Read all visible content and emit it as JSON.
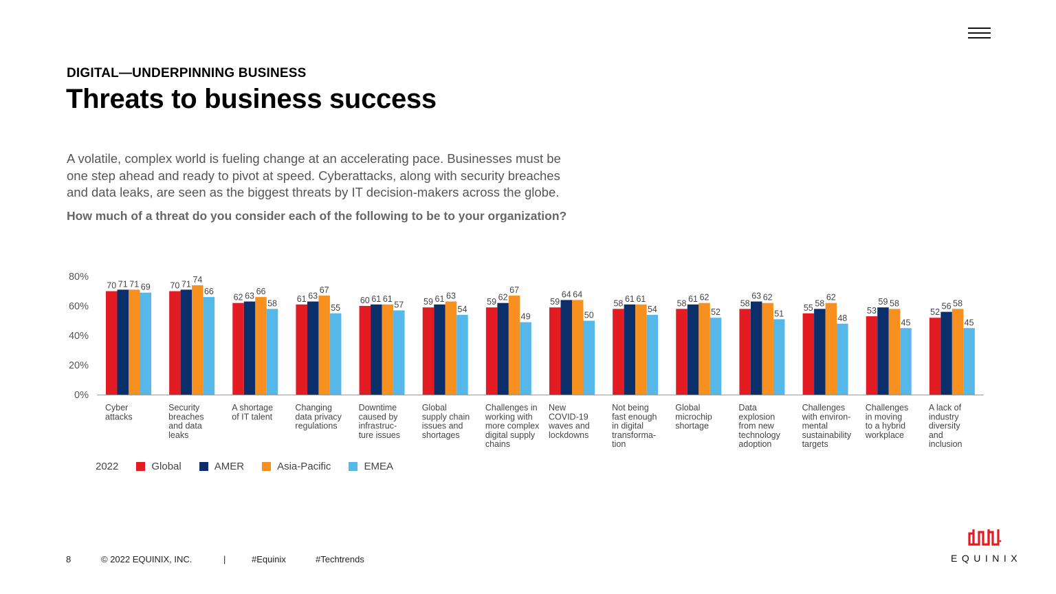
{
  "header": {
    "eyebrow": "DIGITAL—UNDERPINNING BUSINESS",
    "title": "Threats to business success"
  },
  "intro": {
    "lines": [
      "A volatile, complex world is fueling change at an accelerating pace. Businesses must be",
      "one step ahead and ready to pivot at speed. Cyberattacks, along with security breaches",
      "and data leaks, are seen as the biggest threats by IT decision-makers across the globe."
    ],
    "question": "How much of a threat do you consider each of the following to be to your organization?"
  },
  "colors": {
    "Global": "#e31c23",
    "AMER": "#0b2f6b",
    "Asia-Pacific": "#f7901e",
    "EMEA": "#55b8e8",
    "logo": "#e31c23"
  },
  "chart_data": {
    "type": "bar",
    "title": "",
    "xlabel": "",
    "ylabel": "",
    "ylim": [
      0,
      80
    ],
    "yticks": [
      "0%",
      "20%",
      "40%",
      "60%",
      "80%"
    ],
    "ytick_values": [
      0,
      20,
      40,
      60,
      80
    ],
    "legend": {
      "year": "2022",
      "placement": "bottom-left"
    },
    "categories": [
      [
        "Cyber",
        "attacks"
      ],
      [
        "Security",
        "breaches",
        "and data",
        "leaks"
      ],
      [
        "A shortage",
        "of IT talent"
      ],
      [
        "Changing",
        "data privacy",
        "regulations"
      ],
      [
        "Downtime",
        "caused by",
        "infrastruc-",
        "ture issues"
      ],
      [
        "Global",
        "supply chain",
        "issues and",
        "shortages"
      ],
      [
        "Challenges in",
        "working with",
        "more complex",
        "digital supply",
        "chains"
      ],
      [
        "New",
        "COVID-19",
        "waves and",
        "lockdowns"
      ],
      [
        "Not being",
        "fast enough",
        "in digital",
        "transforma-",
        "tion"
      ],
      [
        "Global",
        "microchip",
        "shortage"
      ],
      [
        "Data",
        "explosion",
        "from new",
        "technology",
        "adoption"
      ],
      [
        "Challenges",
        "with environ-",
        "mental",
        "sustainability",
        "targets"
      ],
      [
        "Challenges",
        "in moving",
        "to a hybrid",
        "workplace"
      ],
      [
        "A lack of",
        "industry",
        "diversity",
        "and",
        "inclusion"
      ]
    ],
    "series": [
      {
        "name": "Global",
        "values": [
          70,
          70,
          62,
          61,
          60,
          59,
          59,
          59,
          58,
          58,
          58,
          55,
          53,
          52
        ]
      },
      {
        "name": "AMER",
        "values": [
          71,
          71,
          63,
          63,
          61,
          61,
          62,
          64,
          61,
          61,
          63,
          58,
          59,
          56
        ]
      },
      {
        "name": "Asia-Pacific",
        "values": [
          71,
          74,
          66,
          67,
          61,
          63,
          67,
          64,
          61,
          62,
          62,
          62,
          58,
          58
        ]
      },
      {
        "name": "EMEA",
        "values": [
          69,
          66,
          58,
          55,
          57,
          54,
          49,
          50,
          54,
          52,
          51,
          48,
          45,
          45
        ]
      }
    ]
  },
  "footer": {
    "page": "8",
    "copyright": "© 2022 EQUINIX, INC.",
    "separator": "|",
    "tag1": "#Equinix",
    "tag2": "#Techtrends"
  },
  "logo": {
    "text": "EQUINIX"
  }
}
